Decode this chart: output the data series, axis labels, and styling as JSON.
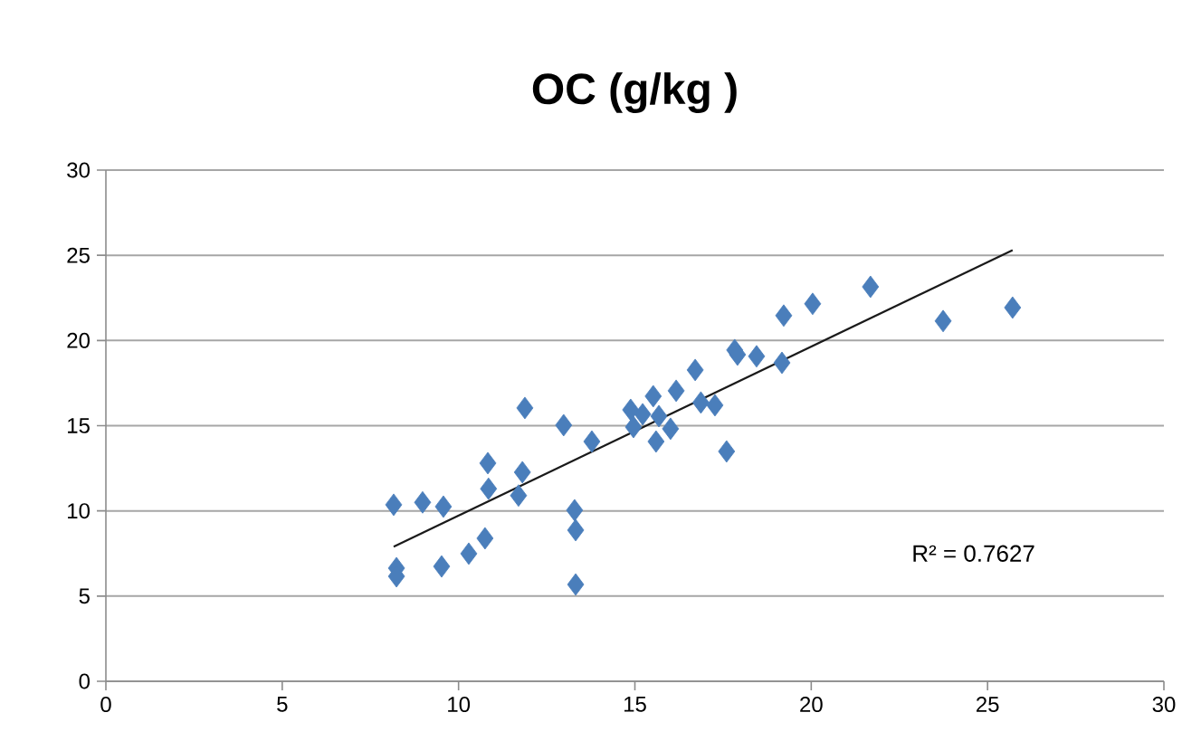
{
  "chart_data": {
    "type": "scatter",
    "title": "OC (g/kg )",
    "xlim": [
      0,
      30
    ],
    "ylim": [
      0,
      30
    ],
    "xticks": [
      0,
      5,
      10,
      15,
      20,
      25,
      30
    ],
    "yticks": [
      0,
      5,
      10,
      15,
      20,
      25,
      30
    ],
    "grid": "y",
    "marker": "diamond",
    "annotations": [
      "R² = 0.7627"
    ],
    "series": [
      {
        "color": "#4a7ebb",
        "x": [
          8.16,
          8.24,
          8.24,
          8.98,
          9.57,
          9.52,
          10.29,
          10.75,
          10.83,
          10.85,
          11.7,
          11.81,
          11.88,
          12.98,
          13.29,
          13.32,
          13.32,
          13.78,
          14.88,
          14.96,
          15.22,
          15.52,
          15.6,
          15.68,
          16.01,
          16.17,
          16.71,
          16.87,
          17.27,
          17.6,
          17.83,
          17.91,
          18.45,
          19.17,
          19.22,
          20.04,
          21.68,
          23.74,
          25.71
        ],
        "values": [
          10.36,
          6.64,
          6.16,
          10.5,
          10.25,
          6.74,
          7.49,
          8.39,
          12.8,
          11.3,
          10.9,
          12.27,
          16.04,
          15.03,
          10.04,
          8.87,
          5.68,
          14.07,
          15.93,
          14.92,
          15.67,
          16.73,
          14.07,
          15.56,
          14.82,
          17.05,
          18.27,
          16.36,
          16.2,
          13.49,
          19.44,
          19.17,
          19.07,
          18.69,
          21.46,
          22.15,
          23.15,
          21.14,
          21.93
        ]
      },
      {
        "type": "line",
        "color": "#1a1a1a",
        "marker": "none",
        "x": [
          8.16,
          25.71
        ],
        "values": [
          7.9,
          25.3
        ]
      }
    ]
  }
}
